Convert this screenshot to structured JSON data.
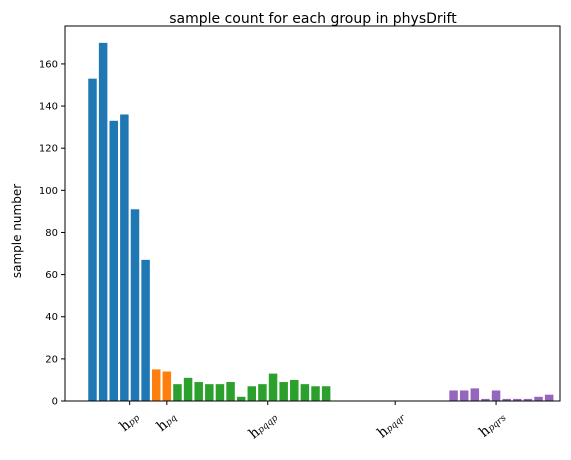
{
  "chart_data": {
    "type": "bar",
    "title": "sample count for each group in physDrift",
    "ylabel": "sample number",
    "xlabel": "",
    "ylim": [
      0,
      178
    ],
    "yticks": [
      0,
      20,
      40,
      60,
      80,
      100,
      120,
      140,
      160
    ],
    "grid": false,
    "x_tick_labels": [
      {
        "main": "h",
        "sub": "pp",
        "at_bar": 3.5
      },
      {
        "main": "h",
        "sub": "pq",
        "at_bar": 7
      },
      {
        "main": "h",
        "sub": "pqqp",
        "at_bar": 16.5
      },
      {
        "main": "h",
        "sub": "pqqr",
        "at_bar": 28.5
      },
      {
        "main": "h",
        "sub": "pqrs",
        "at_bar": 38
      }
    ],
    "series": [
      {
        "color": "#1f77b4",
        "start": 0,
        "values": [
          153,
          170,
          133,
          136,
          91,
          67
        ]
      },
      {
        "color": "#ff7f0e",
        "start": 6,
        "values": [
          15,
          14
        ]
      },
      {
        "color": "#2ca02c",
        "start": 8,
        "values": [
          8,
          11,
          9,
          8,
          8,
          9,
          2,
          7,
          8,
          13,
          9,
          10,
          8,
          7,
          7
        ]
      },
      {
        "color": "#d62728",
        "start": 23,
        "values": [
          0,
          0,
          0,
          0,
          0,
          0,
          0,
          0,
          0,
          0,
          0
        ]
      },
      {
        "color": "#9467bd",
        "start": 34,
        "values": [
          5,
          5,
          6,
          1,
          5,
          1,
          1,
          1,
          2,
          3
        ]
      }
    ]
  }
}
